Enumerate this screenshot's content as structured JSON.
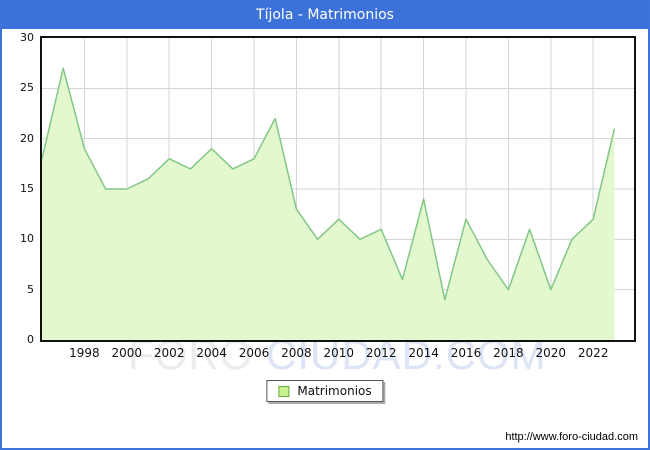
{
  "window": {
    "title": "Tíjola - Matrimonios"
  },
  "chart_data": {
    "type": "area",
    "title": "Tíjola - Matrimonios",
    "x": [
      1996,
      1997,
      1998,
      1999,
      2000,
      2001,
      2002,
      2003,
      2004,
      2005,
      2006,
      2007,
      2008,
      2009,
      2010,
      2011,
      2012,
      2013,
      2014,
      2015,
      2016,
      2017,
      2018,
      2019,
      2020,
      2021,
      2022,
      2023
    ],
    "series": [
      {
        "name": "Matrimonios",
        "values": [
          18,
          27,
          19,
          15,
          15,
          16,
          18,
          17,
          19,
          17,
          18,
          22,
          13,
          10,
          12,
          10,
          11,
          6,
          14,
          4,
          12,
          8,
          5,
          11,
          5,
          10,
          12,
          21
        ]
      }
    ],
    "xlabel": "",
    "ylabel": "",
    "ylim": [
      0,
      30
    ],
    "yticks": [
      0,
      5,
      10,
      15,
      20,
      25,
      30
    ],
    "xticks": [
      1998,
      2000,
      2002,
      2004,
      2006,
      2008,
      2010,
      2012,
      2014,
      2016,
      2018,
      2020,
      2022
    ],
    "grid": true,
    "legend_position": "bottom-center",
    "colors": {
      "area_fill": "#e4f8d0",
      "line": "#82c786",
      "gridline": "#d6d6d6",
      "plot_border": "#111111",
      "title_bg": "#3b71d8",
      "title_fg": "#ffffff",
      "legend_swatch_fill": "#c9f18e",
      "legend_swatch_border": "#69a945"
    }
  },
  "legend": {
    "label": "Matrimonios"
  },
  "watermark": {
    "part1": "FORO",
    "part2": "CIUDAD.COM"
  },
  "footer": {
    "url": "http://www.foro-ciudad.com"
  }
}
